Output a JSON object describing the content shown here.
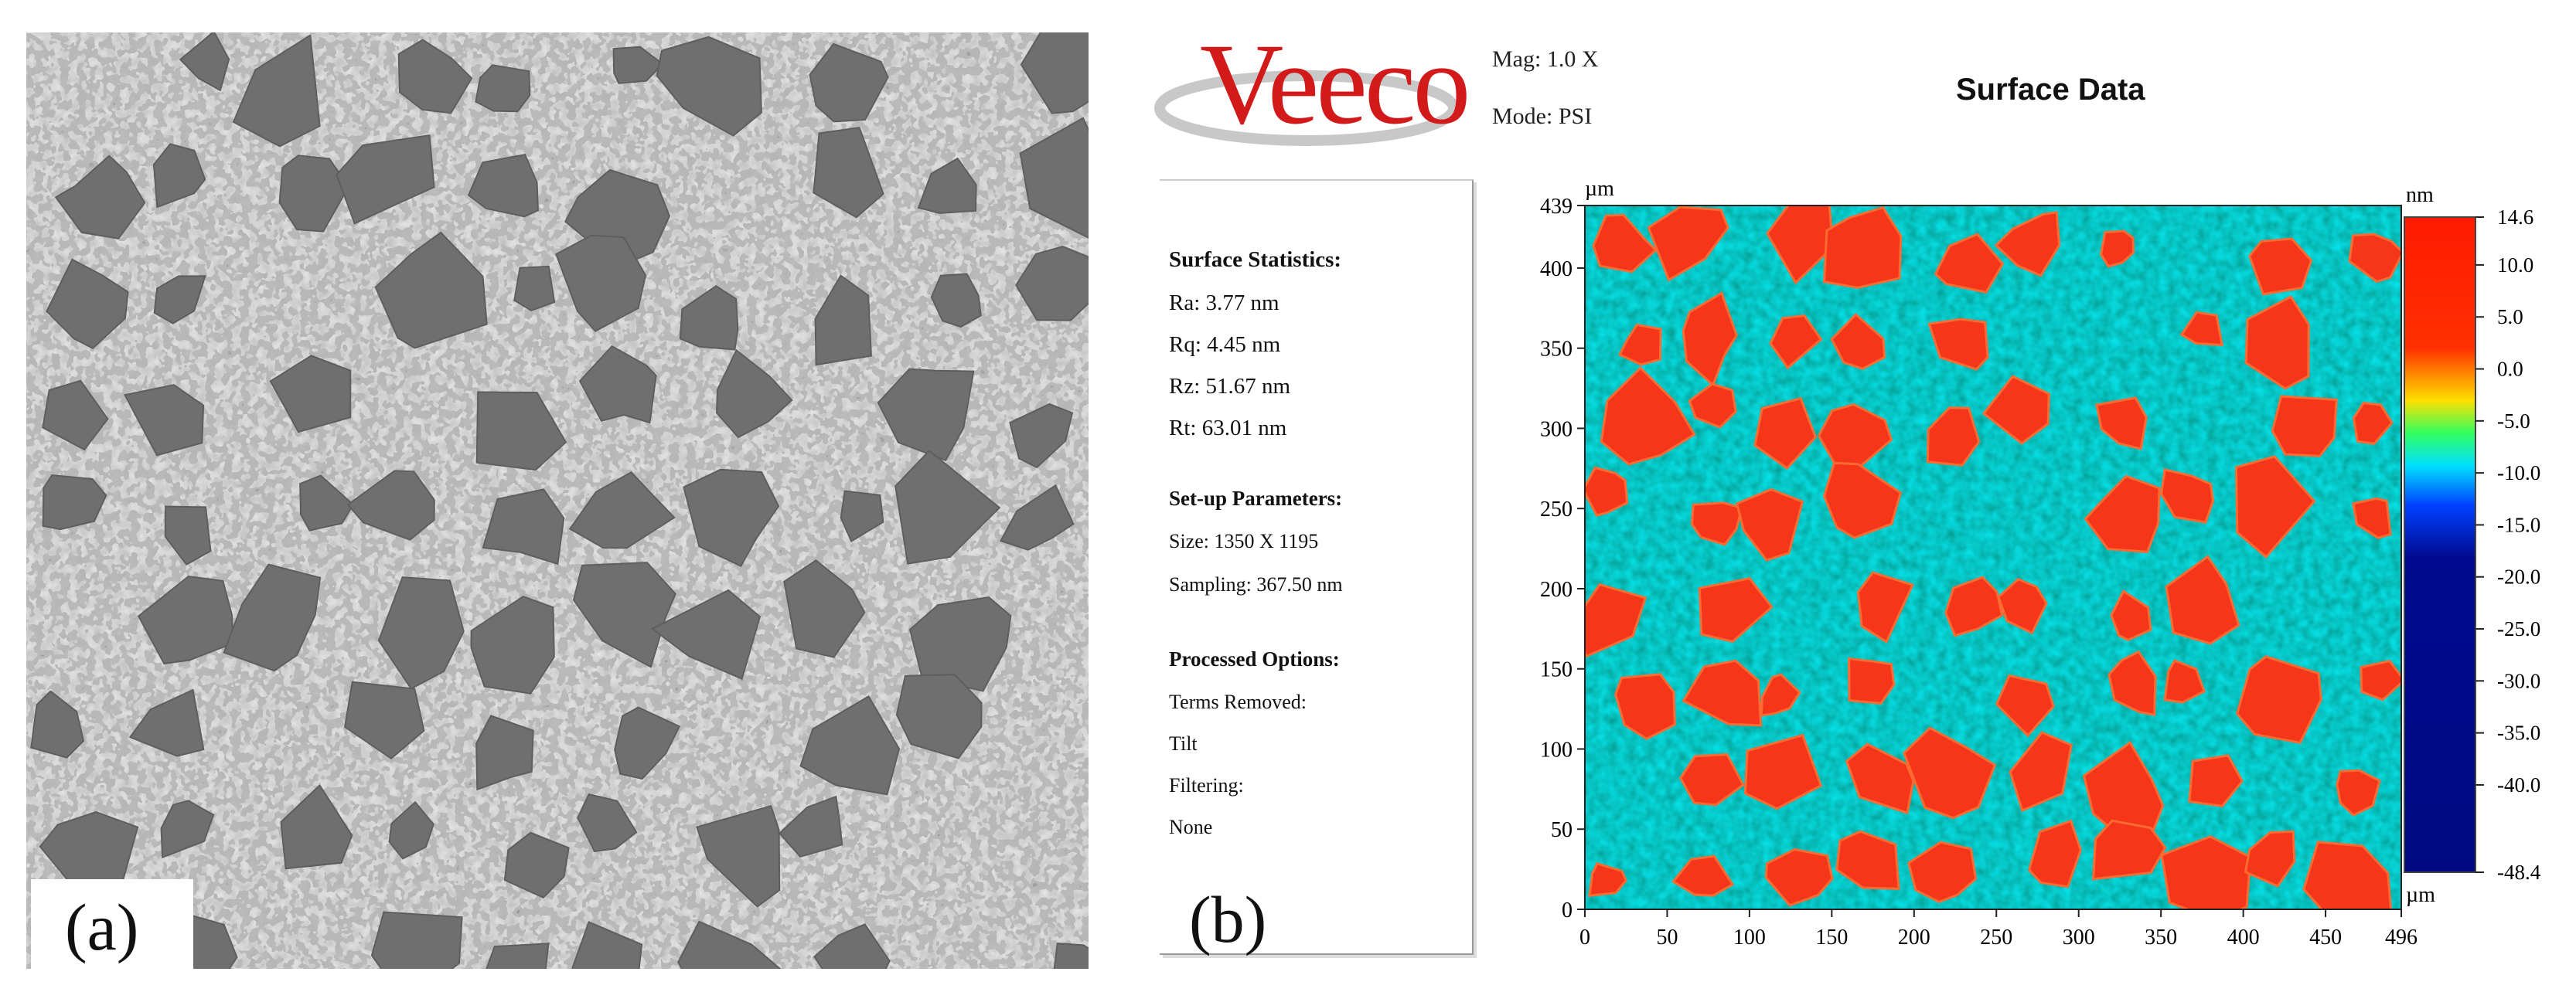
{
  "panel_a": {
    "label": "(a)"
  },
  "panel_b": {
    "label": "(b)",
    "logo": "Veeco",
    "mag_label": "Mag:",
    "mag_value": "1.0 X",
    "mode_label": "Mode:",
    "mode_value": "PSI",
    "title": "Surface Data",
    "stats": {
      "heading": "Surface Statistics:",
      "ra": "Ra:  3.77 nm",
      "rq": "Rq:  4.45 nm",
      "rz": "Rz:  51.67 nm",
      "rt": "Rt:  63.01 nm",
      "setup_heading": "Set-up Parameters:",
      "size": "Size: 1350 X 1195",
      "sampling": "Sampling:  367.50 nm",
      "processed_heading": "Processed Options:",
      "terms": "Terms Removed:",
      "tilt": "Tilt",
      "filtering": "Filtering:",
      "none": "None"
    },
    "x_unit": "µm",
    "y_unit": "µm",
    "colorbar_unit_top": "nm",
    "colorbar_unit_bottom": "µm",
    "x_ticks": [
      "0",
      "50",
      "100",
      "150",
      "200",
      "250",
      "300",
      "350",
      "400",
      "450",
      "496"
    ],
    "y_ticks": [
      "0",
      "50",
      "100",
      "150",
      "200",
      "250",
      "300",
      "350",
      "400",
      "439"
    ],
    "colorbar_ticks": [
      "14.6",
      "10.0",
      "5.0",
      "0.0",
      "-5.0",
      "-10.0",
      "-15.0",
      "-20.0",
      "-25.0",
      "-30.0",
      "-35.0",
      "-40.0",
      "-48.4"
    ]
  }
}
